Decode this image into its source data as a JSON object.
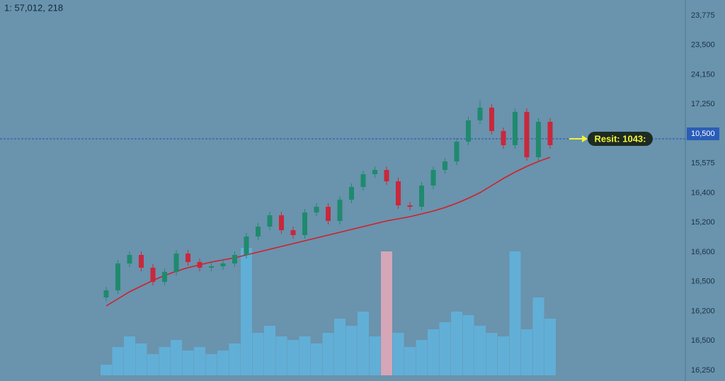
{
  "chart_data": {
    "type": "candlestick",
    "title": "1: 57,012, 218",
    "annotation": "Resit: 1043:",
    "price_axis_labels": [
      "23,775",
      "23,500",
      "24,150",
      "17,250",
      "10,500",
      "15,575",
      "16,400",
      "15,200",
      "16,600",
      "16,500",
      "16,200",
      "16,500",
      "16,250"
    ],
    "highlighted_label": 4,
    "up_color": "#1f8a6e",
    "down_color": "#c8283c",
    "ma_color": "#d0202a",
    "volume_color": "#5fb4de",
    "volume_down_color": "#e6a9b8",
    "open": [
      0,
      10,
      48,
      60,
      42,
      22,
      36,
      62,
      50,
      42,
      44,
      48,
      60,
      86,
      100,
      116,
      95,
      88,
      120,
      128,
      108,
      138,
      156,
      174,
      180,
      164,
      130,
      128,
      158,
      180,
      192,
      220,
      250,
      268,
      235,
      215,
      262,
      198,
      248
    ],
    "high": [
      15,
      53,
      65,
      65,
      47,
      41,
      67,
      67,
      55,
      49,
      53,
      65,
      91,
      105,
      121,
      121,
      100,
      125,
      133,
      133,
      143,
      161,
      179,
      185,
      185,
      169,
      135,
      163,
      185,
      197,
      225,
      255,
      278,
      273,
      240,
      267,
      267,
      253,
      253
    ],
    "low": [
      -5,
      5,
      43,
      37,
      17,
      17,
      31,
      45,
      37,
      37,
      39,
      43,
      55,
      81,
      95,
      90,
      83,
      83,
      115,
      103,
      103,
      133,
      151,
      169,
      159,
      125,
      123,
      123,
      153,
      175,
      187,
      215,
      245,
      230,
      210,
      210,
      193,
      193,
      210
    ],
    "close": [
      10,
      48,
      60,
      42,
      22,
      36,
      62,
      50,
      42,
      44,
      48,
      60,
      86,
      100,
      116,
      95,
      88,
      120,
      128,
      108,
      138,
      156,
      174,
      180,
      164,
      130,
      128,
      158,
      180,
      192,
      220,
      250,
      268,
      235,
      215,
      262,
      198,
      248,
      215
    ],
    "ma": [
      -12,
      -2,
      8,
      16,
      24,
      31,
      37,
      42,
      46,
      50,
      53,
      56,
      60,
      64,
      68,
      72,
      76,
      80,
      84,
      88,
      92,
      96,
      100,
      104,
      108,
      111,
      114,
      118,
      122,
      127,
      133,
      140,
      148,
      158,
      168,
      177,
      185,
      192,
      198
    ],
    "volume": [
      15,
      40,
      55,
      45,
      30,
      40,
      50,
      35,
      40,
      30,
      35,
      45,
      180,
      60,
      70,
      55,
      50,
      55,
      45,
      60,
      80,
      70,
      90,
      55,
      175,
      60,
      40,
      50,
      65,
      75,
      90,
      85,
      70,
      60,
      55,
      175,
      65,
      110,
      80
    ],
    "resistance": 224
  }
}
